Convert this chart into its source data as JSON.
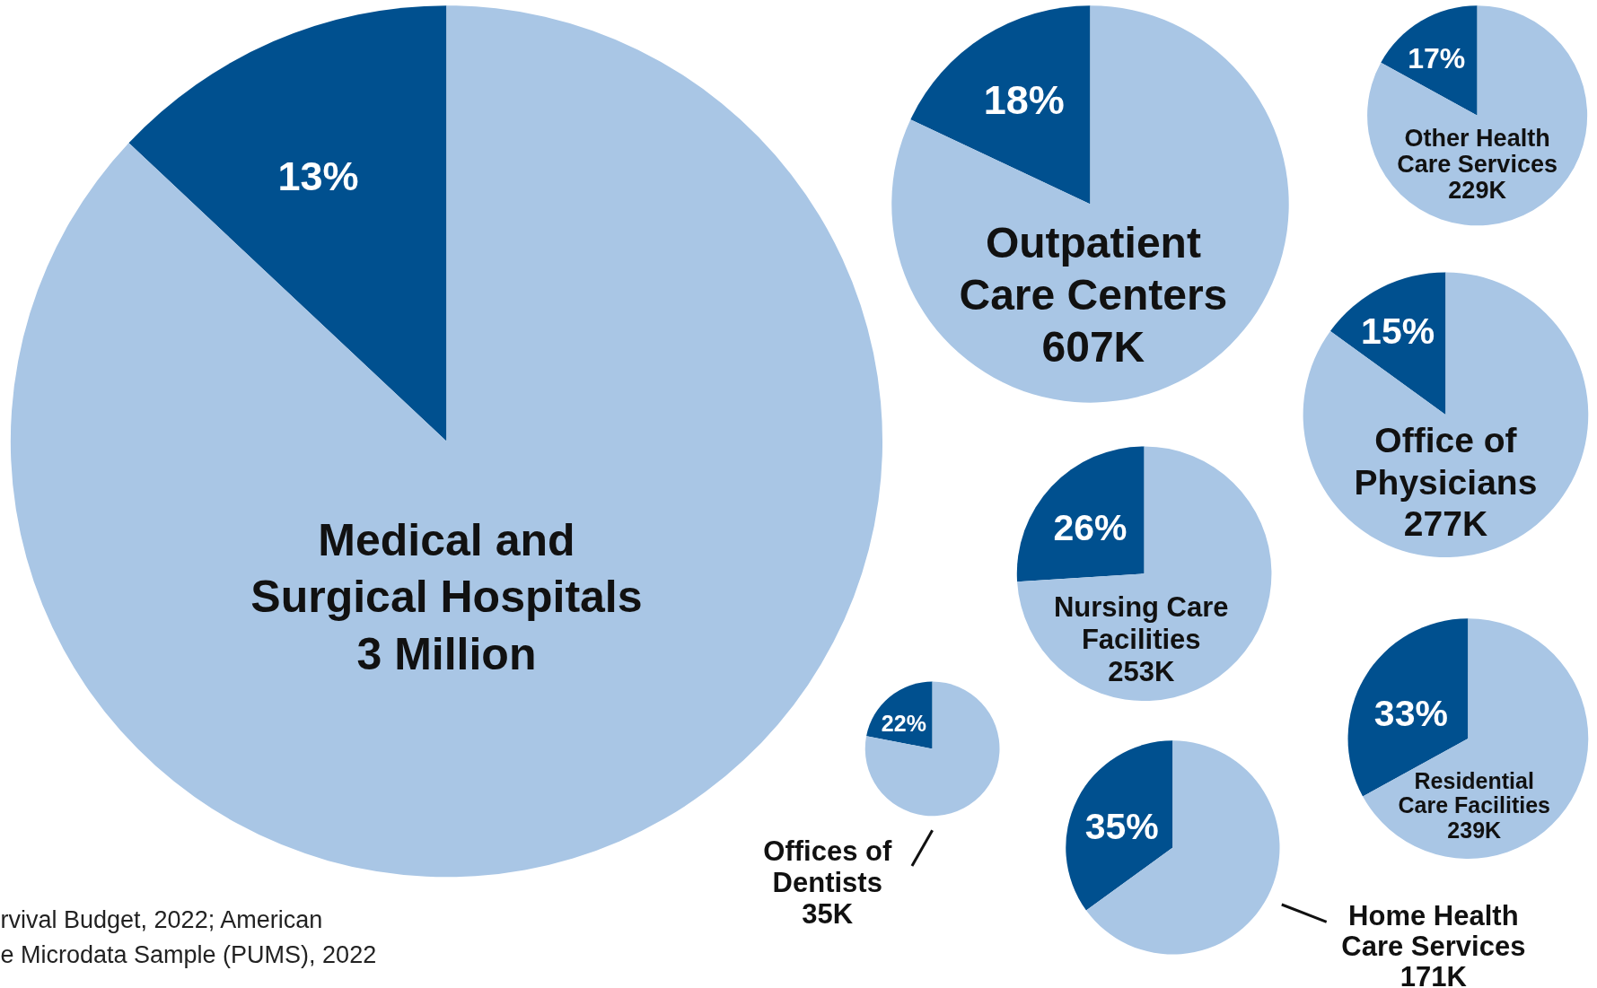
{
  "chart_data": [
    {
      "type": "pie",
      "title": "Medical and\nSurgical Hospitals\n3 Million",
      "categories": [
        null,
        null
      ],
      "values": [
        13,
        87
      ],
      "colors": [
        "#00508f",
        "#a9c6e5"
      ],
      "value_labels": [
        "13%",
        null
      ],
      "annotations": [
        "rvival Budget, 2022; American\ne Microdata Sample (PUMS), 2022"
      ]
    },
    {
      "type": "pie",
      "title": "Outpatient\nCare Centers\n607K",
      "categories": [
        null,
        null
      ],
      "values": [
        18,
        82
      ],
      "colors": [
        "#00508f",
        "#a9c6e5"
      ],
      "value_labels": [
        "18%",
        null
      ]
    },
    {
      "type": "pie",
      "title": "Other Health\nCare Services\n229K",
      "categories": [
        null,
        null
      ],
      "values": [
        17,
        83
      ],
      "colors": [
        "#00508f",
        "#a9c6e5"
      ],
      "value_labels": [
        "17%",
        null
      ]
    },
    {
      "type": "pie",
      "title": "Office of\nPhysicians\n277K",
      "categories": [
        null,
        null
      ],
      "values": [
        15,
        85
      ],
      "colors": [
        "#00508f",
        "#a9c6e5"
      ],
      "value_labels": [
        "15%",
        null
      ]
    },
    {
      "type": "pie",
      "title": "Nursing Care\nFacilities\n253K",
      "categories": [
        null,
        null
      ],
      "values": [
        26,
        74
      ],
      "colors": [
        "#00508f",
        "#a9c6e5"
      ],
      "value_labels": [
        "26%",
        null
      ]
    },
    {
      "type": "pie",
      "title": "Residential\nCare Facilities\n239K",
      "categories": [
        null,
        null
      ],
      "values": [
        33,
        67
      ],
      "colors": [
        "#00508f",
        "#a9c6e5"
      ],
      "value_labels": [
        "33%",
        null
      ]
    },
    {
      "type": "pie",
      "title": "Offices of\nDentists\n35K",
      "categories": [
        null,
        null
      ],
      "values": [
        22,
        78
      ],
      "colors": [
        "#00508f",
        "#a9c6e5"
      ],
      "value_labels": [
        "22%",
        null
      ]
    },
    {
      "type": "pie",
      "title": "Home Health\nCare Services\n171K",
      "categories": [
        null,
        null
      ],
      "values": [
        35,
        65
      ],
      "colors": [
        "#00508f",
        "#a9c6e5"
      ],
      "value_labels": [
        "35%",
        null
      ]
    }
  ]
}
